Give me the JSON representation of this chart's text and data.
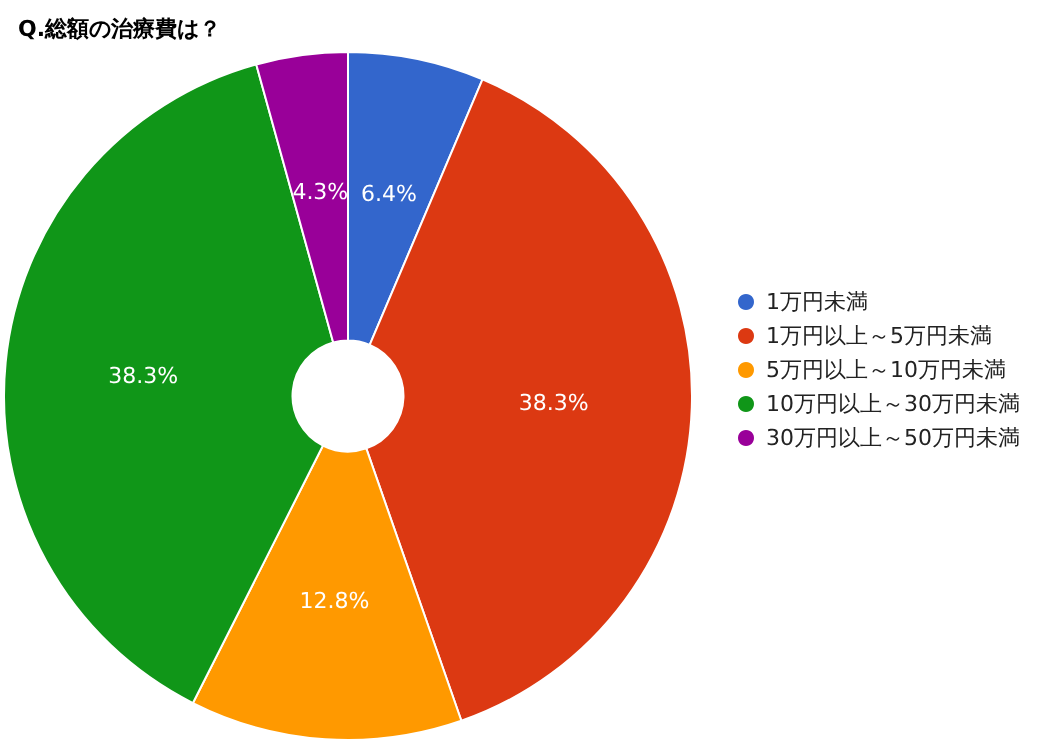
{
  "chart_data": {
    "type": "donut",
    "title": "Q.総額の治療費は？",
    "categories": [
      "1万円未満",
      "1万円以上～5万円未満",
      "5万円以上～10万円未満",
      "10万円以上～30万円未満",
      "30万円以上～50万円未満"
    ],
    "values": [
      6.4,
      38.3,
      12.8,
      38.3,
      4.3
    ],
    "colors": [
      "#3366cc",
      "#dc3912",
      "#ff9900",
      "#109618",
      "#990099"
    ],
    "value_labels": [
      "6.4%",
      "38.3%",
      "12.8%",
      "38.3%",
      "4.3%"
    ],
    "legend": "right"
  }
}
